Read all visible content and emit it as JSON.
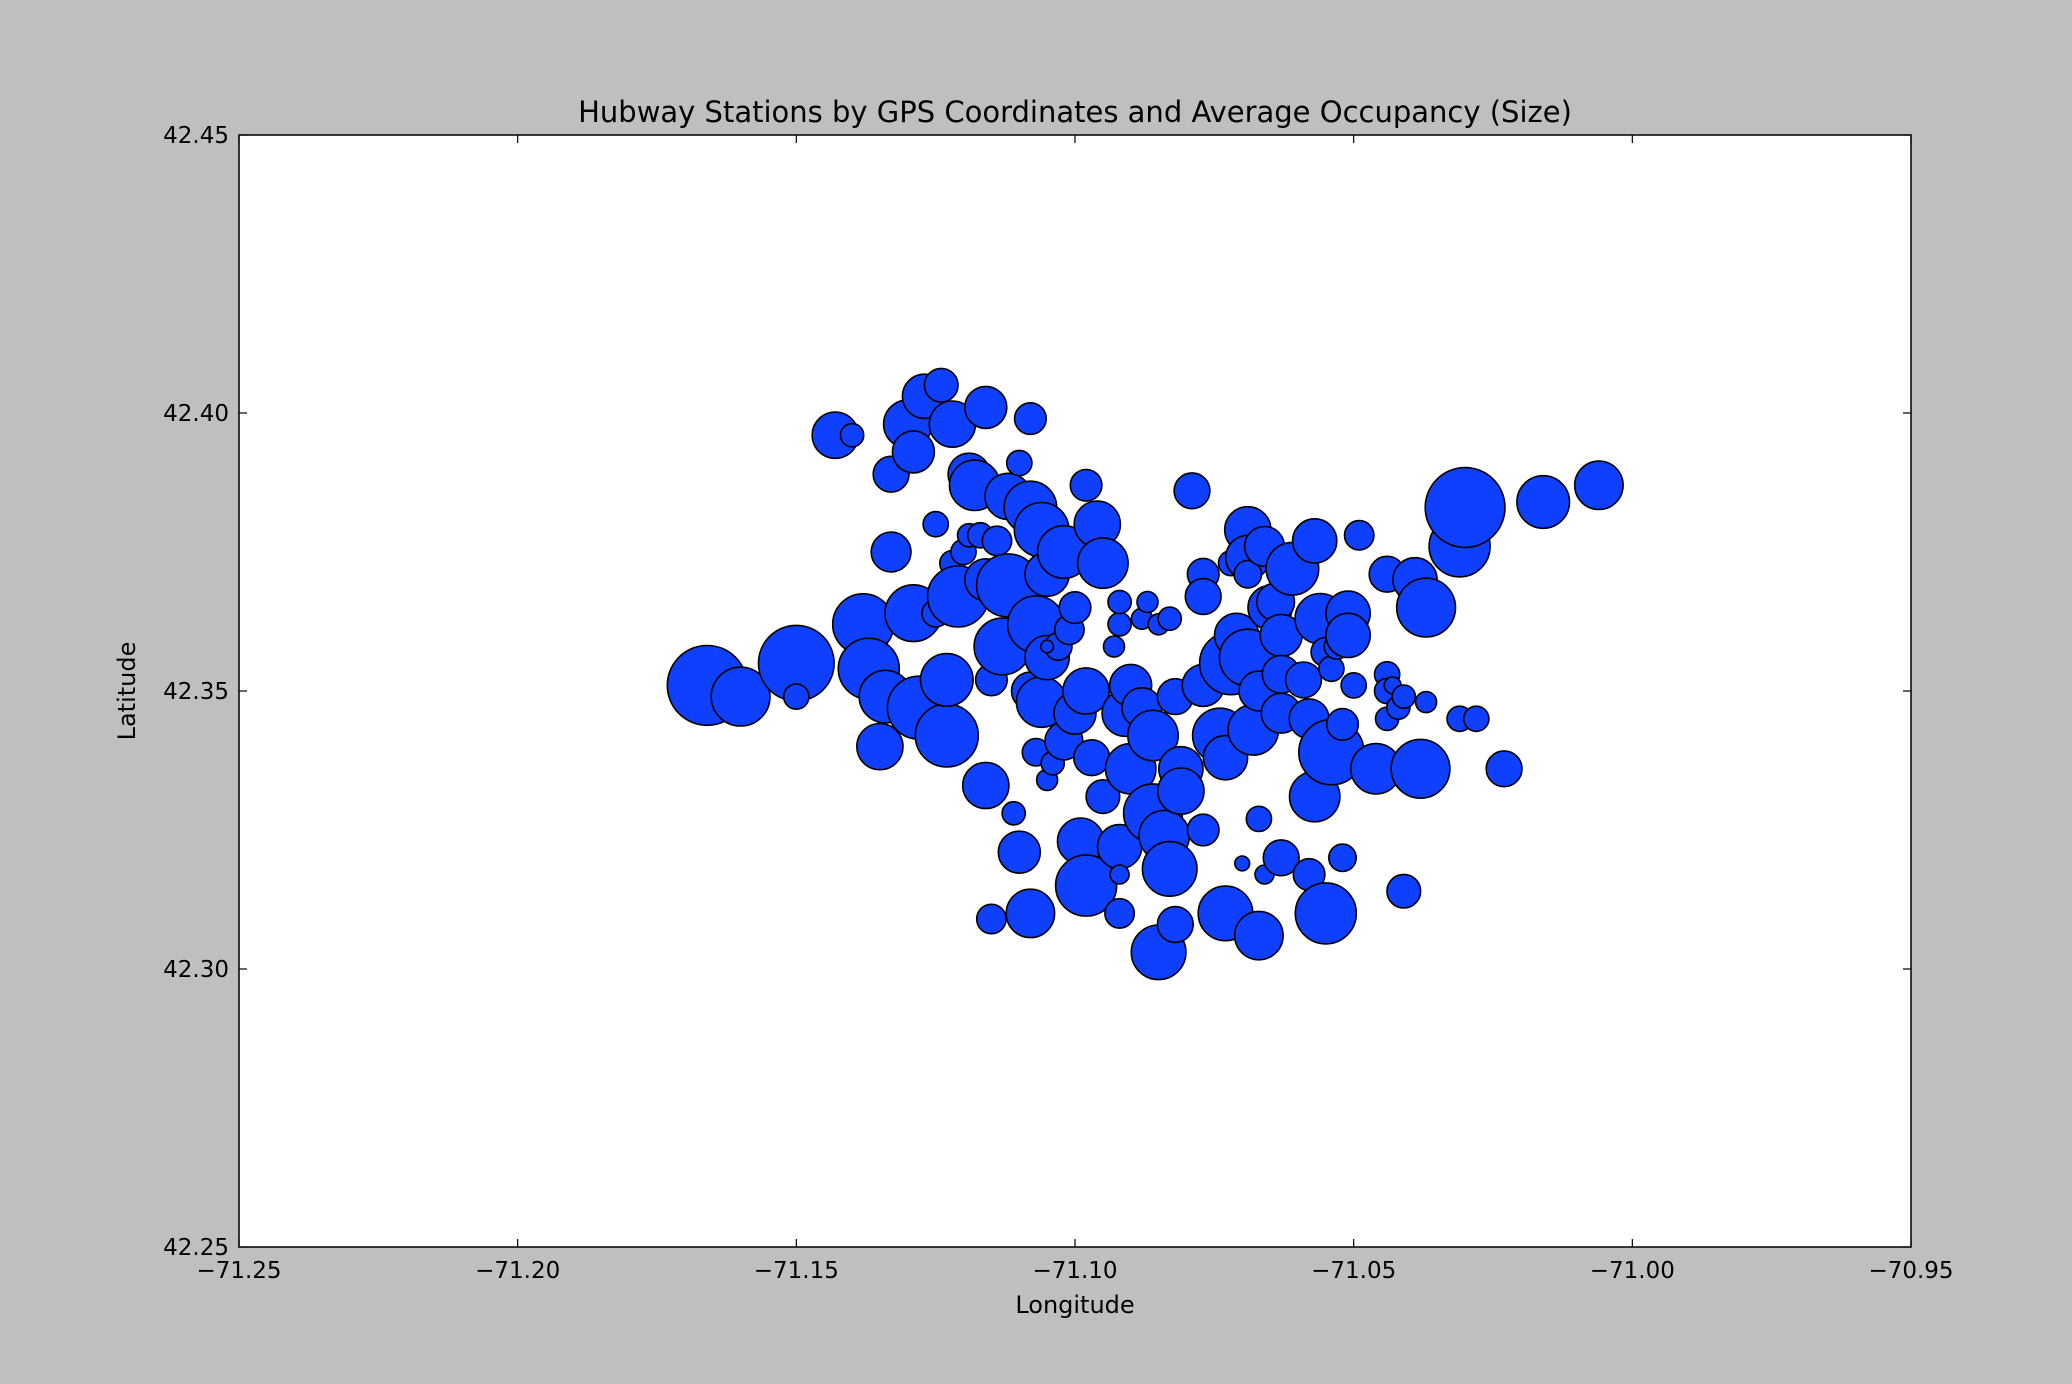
{
  "chart_data": {
    "type": "scatter",
    "title": "Hubway Stations by GPS Coordinates and Average Occupancy (Size)",
    "xlabel": "Longitude",
    "ylabel": "Latitude",
    "xlim": [
      -71.25,
      -70.95
    ],
    "ylim": [
      42.25,
      42.45
    ],
    "x_ticks": [
      "−71.25",
      "−71.20",
      "−71.15",
      "−71.10",
      "−71.05",
      "−71.00",
      "−70.95"
    ],
    "y_ticks": [
      "42.25",
      "42.30",
      "42.35",
      "42.40",
      "42.45"
    ],
    "grid": false,
    "colors": {
      "marker_fill": "#1040ff",
      "marker_edge": "#000000",
      "background": "#bfbfbf",
      "plot_area": "#ffffff"
    },
    "size_note": "marker radius proportional to average occupancy (relative units)",
    "points": [
      {
        "x": -71.166,
        "y": 42.351,
        "s": 38
      },
      {
        "x": -71.16,
        "y": 42.349,
        "s": 28
      },
      {
        "x": -71.15,
        "y": 42.355,
        "s": 36
      },
      {
        "x": -71.15,
        "y": 42.349,
        "s": 12
      },
      {
        "x": -71.143,
        "y": 42.396,
        "s": 22
      },
      {
        "x": -71.14,
        "y": 42.396,
        "s": 11
      },
      {
        "x": -71.138,
        "y": 42.362,
        "s": 29
      },
      {
        "x": -71.137,
        "y": 42.354,
        "s": 29
      },
      {
        "x": -71.135,
        "y": 42.34,
        "s": 22
      },
      {
        "x": -71.134,
        "y": 42.349,
        "s": 25
      },
      {
        "x": -71.133,
        "y": 42.375,
        "s": 19
      },
      {
        "x": -71.133,
        "y": 42.389,
        "s": 17
      },
      {
        "x": -71.13,
        "y": 42.398,
        "s": 23
      },
      {
        "x": -71.129,
        "y": 42.393,
        "s": 20
      },
      {
        "x": -71.129,
        "y": 42.364,
        "s": 27
      },
      {
        "x": -71.128,
        "y": 42.347,
        "s": 30
      },
      {
        "x": -71.127,
        "y": 42.403,
        "s": 21
      },
      {
        "x": -71.124,
        "y": 42.405,
        "s": 16
      },
      {
        "x": -71.125,
        "y": 42.38,
        "s": 12
      },
      {
        "x": -71.125,
        "y": 42.364,
        "s": 13
      },
      {
        "x": -71.123,
        "y": 42.342,
        "s": 30
      },
      {
        "x": -71.123,
        "y": 42.352,
        "s": 25
      },
      {
        "x": -71.122,
        "y": 42.398,
        "s": 22
      },
      {
        "x": -71.122,
        "y": 42.373,
        "s": 12
      },
      {
        "x": -71.121,
        "y": 42.367,
        "s": 29
      },
      {
        "x": -71.12,
        "y": 42.375,
        "s": 12
      },
      {
        "x": -71.119,
        "y": 42.389,
        "s": 20
      },
      {
        "x": -71.119,
        "y": 42.378,
        "s": 11
      },
      {
        "x": -71.118,
        "y": 42.387,
        "s": 24
      },
      {
        "x": -71.117,
        "y": 42.378,
        "s": 12
      },
      {
        "x": -71.116,
        "y": 42.401,
        "s": 20
      },
      {
        "x": -71.116,
        "y": 42.333,
        "s": 22
      },
      {
        "x": -71.116,
        "y": 42.37,
        "s": 20
      },
      {
        "x": -71.115,
        "y": 42.352,
        "s": 15
      },
      {
        "x": -71.115,
        "y": 42.309,
        "s": 14
      },
      {
        "x": -71.114,
        "y": 42.377,
        "s": 14
      },
      {
        "x": -71.113,
        "y": 42.358,
        "s": 27
      },
      {
        "x": -71.112,
        "y": 42.369,
        "s": 30
      },
      {
        "x": -71.112,
        "y": 42.385,
        "s": 22
      },
      {
        "x": -71.111,
        "y": 42.328,
        "s": 11
      },
      {
        "x": -71.11,
        "y": 42.321,
        "s": 20
      },
      {
        "x": -71.11,
        "y": 42.391,
        "s": 12
      },
      {
        "x": -71.108,
        "y": 42.399,
        "s": 15
      },
      {
        "x": -71.108,
        "y": 42.383,
        "s": 25
      },
      {
        "x": -71.108,
        "y": 42.35,
        "s": 18
      },
      {
        "x": -71.108,
        "y": 42.31,
        "s": 23
      },
      {
        "x": -71.107,
        "y": 42.362,
        "s": 27
      },
      {
        "x": -71.107,
        "y": 42.339,
        "s": 13
      },
      {
        "x": -71.106,
        "y": 42.379,
        "s": 26
      },
      {
        "x": -71.106,
        "y": 42.348,
        "s": 24
      },
      {
        "x": -71.105,
        "y": 42.334,
        "s": 10
      },
      {
        "x": -71.105,
        "y": 42.356,
        "s": 21
      },
      {
        "x": -71.105,
        "y": 42.371,
        "s": 21
      },
      {
        "x": -71.104,
        "y": 42.337,
        "s": 11
      },
      {
        "x": -71.103,
        "y": 42.358,
        "s": 13
      },
      {
        "x": -71.102,
        "y": 42.375,
        "s": 25
      },
      {
        "x": -71.102,
        "y": 42.341,
        "s": 18
      },
      {
        "x": -71.101,
        "y": 42.361,
        "s": 14
      },
      {
        "x": -71.1,
        "y": 42.365,
        "s": 15
      },
      {
        "x": -71.1,
        "y": 42.346,
        "s": 20
      },
      {
        "x": -71.099,
        "y": 42.323,
        "s": 22
      },
      {
        "x": -71.098,
        "y": 42.315,
        "s": 29
      },
      {
        "x": -71.098,
        "y": 42.387,
        "s": 15
      },
      {
        "x": -71.098,
        "y": 42.35,
        "s": 22
      },
      {
        "x": -71.097,
        "y": 42.338,
        "s": 17
      },
      {
        "x": -71.096,
        "y": 42.38,
        "s": 22
      },
      {
        "x": -71.095,
        "y": 42.373,
        "s": 24
      },
      {
        "x": -71.095,
        "y": 42.331,
        "s": 16
      },
      {
        "x": -71.093,
        "y": 42.358,
        "s": 10
      },
      {
        "x": -71.092,
        "y": 42.31,
        "s": 14
      },
      {
        "x": -71.092,
        "y": 42.322,
        "s": 21
      },
      {
        "x": -71.092,
        "y": 42.362,
        "s": 11
      },
      {
        "x": -71.092,
        "y": 42.366,
        "s": 11
      },
      {
        "x": -71.092,
        "y": 42.317,
        "s": 9
      },
      {
        "x": -71.091,
        "y": 42.346,
        "s": 22
      },
      {
        "x": -71.09,
        "y": 42.336,
        "s": 24
      },
      {
        "x": -71.09,
        "y": 42.351,
        "s": 20
      },
      {
        "x": -71.088,
        "y": 42.363,
        "s": 10
      },
      {
        "x": -71.088,
        "y": 42.347,
        "s": 19
      },
      {
        "x": -71.087,
        "y": 42.366,
        "s": 10
      },
      {
        "x": -71.086,
        "y": 42.342,
        "s": 24
      },
      {
        "x": -71.086,
        "y": 42.328,
        "s": 28
      },
      {
        "x": -71.085,
        "y": 42.303,
        "s": 26
      },
      {
        "x": -71.085,
        "y": 42.362,
        "s": 10
      },
      {
        "x": -71.084,
        "y": 42.324,
        "s": 24
      },
      {
        "x": -71.083,
        "y": 42.318,
        "s": 26
      },
      {
        "x": -71.083,
        "y": 42.363,
        "s": 11
      },
      {
        "x": -71.082,
        "y": 42.349,
        "s": 17
      },
      {
        "x": -71.082,
        "y": 42.308,
        "s": 17
      },
      {
        "x": -71.081,
        "y": 42.336,
        "s": 21
      },
      {
        "x": -71.081,
        "y": 42.332,
        "s": 22
      },
      {
        "x": -71.079,
        "y": 42.386,
        "s": 17
      },
      {
        "x": -71.077,
        "y": 42.371,
        "s": 15
      },
      {
        "x": -71.077,
        "y": 42.367,
        "s": 17
      },
      {
        "x": -71.077,
        "y": 42.325,
        "s": 15
      },
      {
        "x": -71.077,
        "y": 42.351,
        "s": 20
      },
      {
        "x": -71.074,
        "y": 42.342,
        "s": 26
      },
      {
        "x": -71.073,
        "y": 42.338,
        "s": 21
      },
      {
        "x": -71.073,
        "y": 42.31,
        "s": 26
      },
      {
        "x": -71.072,
        "y": 42.355,
        "s": 30
      },
      {
        "x": -71.072,
        "y": 42.373,
        "s": 12
      },
      {
        "x": -71.071,
        "y": 42.36,
        "s": 21
      },
      {
        "x": -71.07,
        "y": 42.319,
        "s": 7
      },
      {
        "x": -71.069,
        "y": 42.356,
        "s": 27
      },
      {
        "x": -71.069,
        "y": 42.379,
        "s": 22
      },
      {
        "x": -71.069,
        "y": 42.374,
        "s": 21
      },
      {
        "x": -71.069,
        "y": 42.371,
        "s": 13
      },
      {
        "x": -71.068,
        "y": 42.343,
        "s": 24
      },
      {
        "x": -71.067,
        "y": 42.35,
        "s": 19
      },
      {
        "x": -71.067,
        "y": 42.306,
        "s": 23
      },
      {
        "x": -71.067,
        "y": 42.327,
        "s": 12
      },
      {
        "x": -71.066,
        "y": 42.317,
        "s": 9
      },
      {
        "x": -71.066,
        "y": 42.376,
        "s": 19
      },
      {
        "x": -71.065,
        "y": 42.365,
        "s": 21
      },
      {
        "x": -71.064,
        "y": 42.366,
        "s": 18
      },
      {
        "x": -71.063,
        "y": 42.36,
        "s": 20
      },
      {
        "x": -71.063,
        "y": 42.353,
        "s": 18
      },
      {
        "x": -71.063,
        "y": 42.346,
        "s": 19
      },
      {
        "x": -71.063,
        "y": 42.32,
        "s": 17
      },
      {
        "x": -71.061,
        "y": 42.372,
        "s": 25
      },
      {
        "x": -71.059,
        "y": 42.352,
        "s": 17
      },
      {
        "x": -71.058,
        "y": 42.317,
        "s": 15
      },
      {
        "x": -71.058,
        "y": 42.345,
        "s": 19
      },
      {
        "x": -71.057,
        "y": 42.331,
        "s": 24
      },
      {
        "x": -71.057,
        "y": 42.377,
        "s": 21
      },
      {
        "x": -71.056,
        "y": 42.363,
        "s": 24
      },
      {
        "x": -71.055,
        "y": 42.31,
        "s": 29
      },
      {
        "x": -71.055,
        "y": 42.357,
        "s": 14
      },
      {
        "x": -71.054,
        "y": 42.354,
        "s": 12
      },
      {
        "x": -71.054,
        "y": 42.339,
        "s": 31
      },
      {
        "x": -71.053,
        "y": 42.358,
        "s": 12
      },
      {
        "x": -71.052,
        "y": 42.344,
        "s": 15
      },
      {
        "x": -71.052,
        "y": 42.32,
        "s": 13
      },
      {
        "x": -71.051,
        "y": 42.364,
        "s": 21
      },
      {
        "x": -71.051,
        "y": 42.36,
        "s": 21
      },
      {
        "x": -71.05,
        "y": 42.351,
        "s": 12
      },
      {
        "x": -71.049,
        "y": 42.378,
        "s": 14
      },
      {
        "x": -71.046,
        "y": 42.336,
        "s": 24
      },
      {
        "x": -71.044,
        "y": 42.371,
        "s": 17
      },
      {
        "x": -71.044,
        "y": 42.353,
        "s": 12
      },
      {
        "x": -71.044,
        "y": 42.345,
        "s": 11
      },
      {
        "x": -71.044,
        "y": 42.35,
        "s": 12
      },
      {
        "x": -71.043,
        "y": 42.351,
        "s": 8
      },
      {
        "x": -71.042,
        "y": 42.347,
        "s": 11
      },
      {
        "x": -71.041,
        "y": 42.349,
        "s": 11
      },
      {
        "x": -71.041,
        "y": 42.314,
        "s": 16
      },
      {
        "x": -71.039,
        "y": 42.37,
        "s": 21
      },
      {
        "x": -71.038,
        "y": 42.336,
        "s": 28
      },
      {
        "x": -71.037,
        "y": 42.365,
        "s": 28
      },
      {
        "x": -71.037,
        "y": 42.348,
        "s": 10
      },
      {
        "x": -71.031,
        "y": 42.376,
        "s": 29
      },
      {
        "x": -71.031,
        "y": 42.345,
        "s": 12
      },
      {
        "x": -71.03,
        "y": 42.383,
        "s": 38
      },
      {
        "x": -71.028,
        "y": 42.345,
        "s": 12
      },
      {
        "x": -71.023,
        "y": 42.336,
        "s": 17
      },
      {
        "x": -71.016,
        "y": 42.384,
        "s": 25
      },
      {
        "x": -71.006,
        "y": 42.387,
        "s": 23
      },
      {
        "x": -71.105,
        "y": 42.358,
        "s": 6
      }
    ]
  }
}
